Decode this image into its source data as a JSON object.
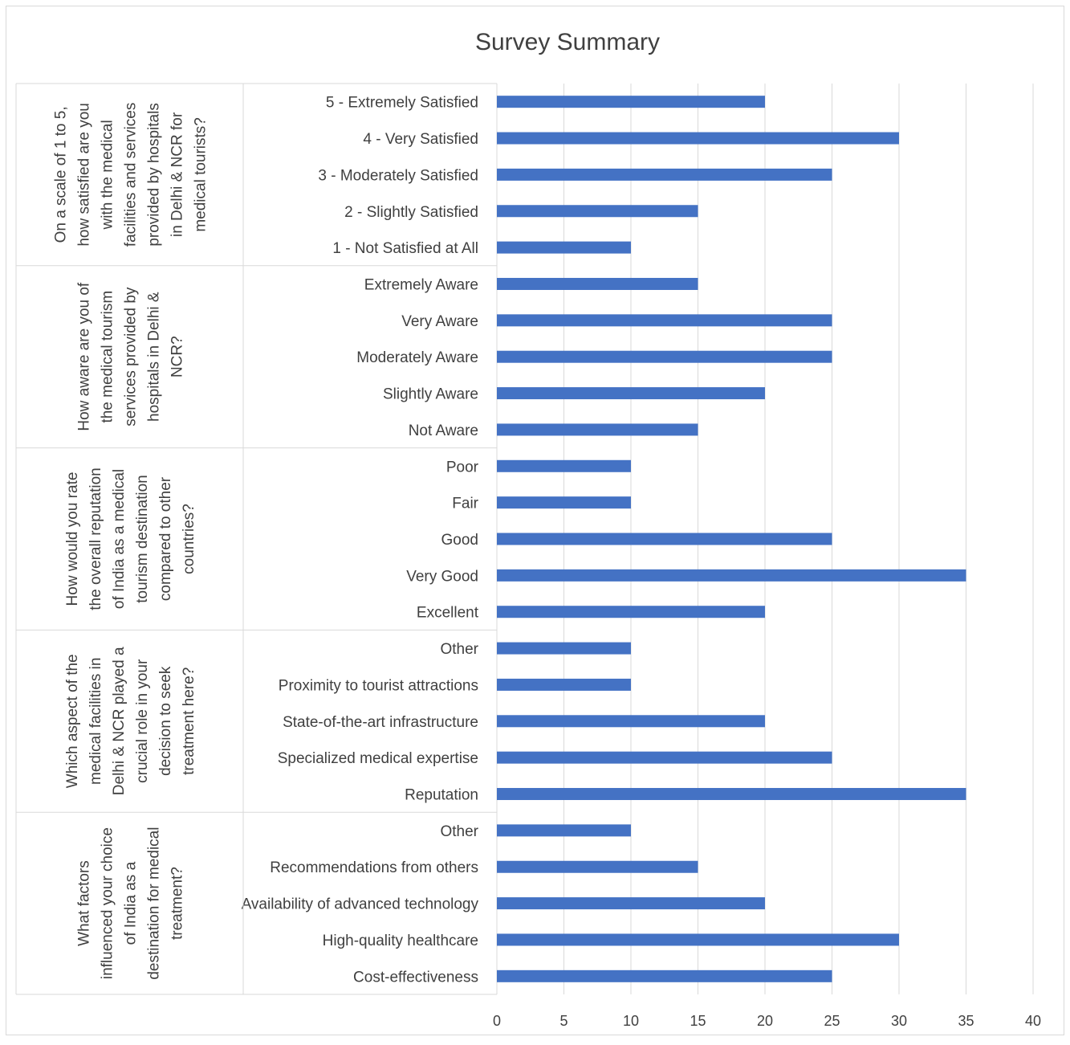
{
  "chart_data": {
    "type": "bar",
    "orientation": "horizontal",
    "title": "Survey Summary",
    "xlim": [
      0,
      40
    ],
    "x_ticks": [
      "0",
      "5",
      "10",
      "15",
      "20",
      "25",
      "30",
      "35",
      "40"
    ],
    "grid": true,
    "legend": "none",
    "bar_color": "#4472C4",
    "groups": [
      {
        "question": "On a scale of 1 to 5, how satisfied are you with the medical facilities and services provided by hospitals in Delhi & NCR for medical tourists?",
        "question_lines": [
          "On a scale of 1 to 5,",
          "how satisfied are you",
          "with the medical",
          "facilities and services",
          "provided by hospitals",
          "in Delhi & NCR for",
          "medical tourists?"
        ],
        "categories": [
          "5 - Extremely Satisfied",
          "4 - Very Satisfied",
          "3 - Moderately Satisfied",
          "2 - Slightly Satisfied",
          "1 - Not Satisfied at All"
        ],
        "values": [
          20,
          30,
          25,
          15,
          10
        ]
      },
      {
        "question": "How aware are you of the medical tourism services provided by hospitals in Delhi & NCR?",
        "question_lines": [
          "How aware are you of",
          "the medical tourism",
          "services provided by",
          "hospitals in Delhi &",
          "NCR?"
        ],
        "categories": [
          "Extremely Aware",
          "Very Aware",
          "Moderately Aware",
          "Slightly Aware",
          "Not Aware"
        ],
        "values": [
          15,
          25,
          25,
          20,
          15
        ]
      },
      {
        "question": "How would you rate the overall reputation of India as a medical tourism destination compared to other countries?",
        "question_lines": [
          "How would you rate",
          "the overall reputation",
          "of India as a medical",
          "tourism destination",
          "compared to other",
          "countries?"
        ],
        "categories": [
          "Poor",
          "Fair",
          "Good",
          "Very Good",
          "Excellent"
        ],
        "values": [
          10,
          10,
          25,
          35,
          20
        ]
      },
      {
        "question": "Which aspect of the medical facilities in Delhi & NCR played a crucial role in your decision to seek treatment here?",
        "question_lines": [
          "Which aspect of the",
          "medical facilities in",
          "Delhi & NCR played a",
          "crucial role in your",
          "decision to seek",
          "treatment here?"
        ],
        "categories": [
          "Other",
          "Proximity to tourist attractions",
          "State-of-the-art infrastructure",
          "Specialized medical expertise",
          "Reputation"
        ],
        "values": [
          10,
          10,
          20,
          25,
          35
        ]
      },
      {
        "question": "What factors influenced your choice of India as a destination for medical treatment?",
        "question_lines": [
          "What factors",
          "influenced your choice",
          "of India as a",
          "destination for medical",
          "treatment?"
        ],
        "categories": [
          "Other",
          "Recommendations from others",
          "Availability of advanced technology",
          "High-quality healthcare",
          "Cost-effectiveness"
        ],
        "values": [
          10,
          15,
          20,
          30,
          25
        ]
      }
    ]
  }
}
